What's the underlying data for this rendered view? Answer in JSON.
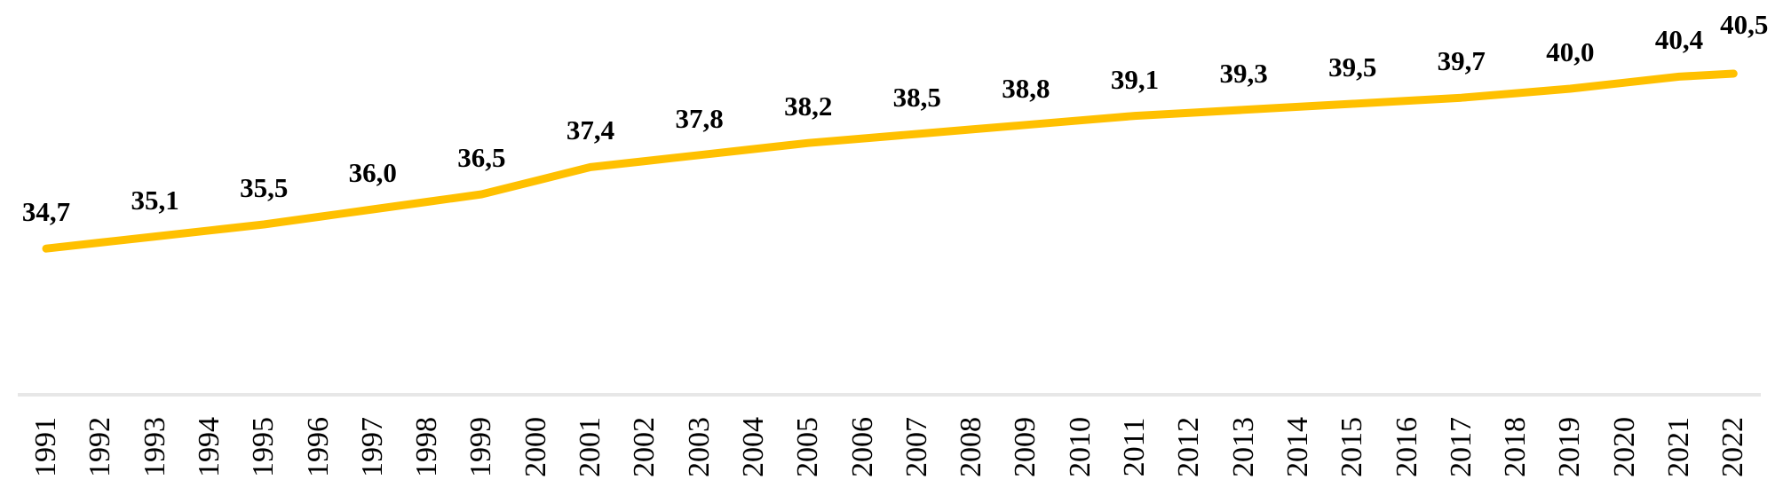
{
  "chart_data": {
    "type": "line",
    "title": "",
    "xlabel": "",
    "ylabel": "",
    "x": [
      1991,
      1992,
      1993,
      1994,
      1995,
      1996,
      1997,
      1998,
      1999,
      2000,
      2001,
      2002,
      2003,
      2004,
      2005,
      2006,
      2007,
      2008,
      2009,
      2010,
      2011,
      2012,
      2013,
      2014,
      2015,
      2016,
      2017,
      2018,
      2019,
      2020,
      2021,
      2022
    ],
    "series": [
      {
        "name": "value",
        "color": "#FFC000",
        "values": [
          34.7,
          34.9,
          35.1,
          35.3,
          35.5,
          35.75,
          36.0,
          36.25,
          36.5,
          36.95,
          37.4,
          37.6,
          37.8,
          38.0,
          38.2,
          38.35,
          38.5,
          38.65,
          38.8,
          38.95,
          39.1,
          39.2,
          39.3,
          39.4,
          39.5,
          39.6,
          39.7,
          39.85,
          40.0,
          40.2,
          40.4,
          40.5
        ]
      }
    ],
    "data_labels": [
      "34,7",
      "",
      "35,1",
      "",
      "35,5",
      "",
      "36,0",
      "",
      "36,5",
      "",
      "37,4",
      "",
      "37,8",
      "",
      "38,2",
      "",
      "38,5",
      "",
      "38,8",
      "",
      "39,1",
      "",
      "39,3",
      "",
      "39,5",
      "",
      "39,7",
      "",
      "40,0",
      "",
      "40,4",
      "40,5"
    ],
    "decimal_separator": ",",
    "ylim": [
      30,
      41
    ],
    "grid": false,
    "legend": "none",
    "x_axis_labels_rotated_degrees": 90
  },
  "colors": {
    "line": "#FFC000",
    "axis": "#E7E7E7",
    "text": "#000000"
  }
}
